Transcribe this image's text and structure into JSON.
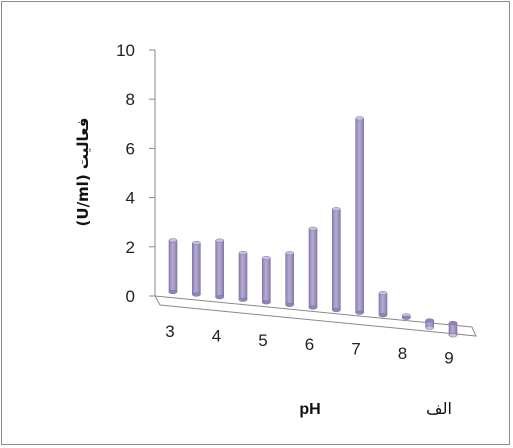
{
  "chart_data": {
    "type": "bar",
    "categories": [
      "3",
      "",
      "4",
      "",
      "5",
      "",
      "6",
      "",
      "7",
      "",
      "8",
      "",
      "9"
    ],
    "values": [
      2.1,
      2.1,
      2.3,
      1.9,
      1.8,
      2.1,
      3.2,
      4.1,
      7.9,
      0.9,
      0.1,
      -0.3,
      -0.5
    ],
    "ylim": [
      0,
      10
    ],
    "yticks": [
      "0",
      "2",
      "4",
      "6",
      "8",
      "10"
    ],
    "xticks": [
      "3",
      "4",
      "5",
      "6",
      "7",
      "8",
      "9"
    ],
    "xlabel": "pH",
    "ylabel": "فعالیت (U/ml)",
    "panel_label": "الف",
    "bar_color": "#a99ccf",
    "grid": false
  }
}
